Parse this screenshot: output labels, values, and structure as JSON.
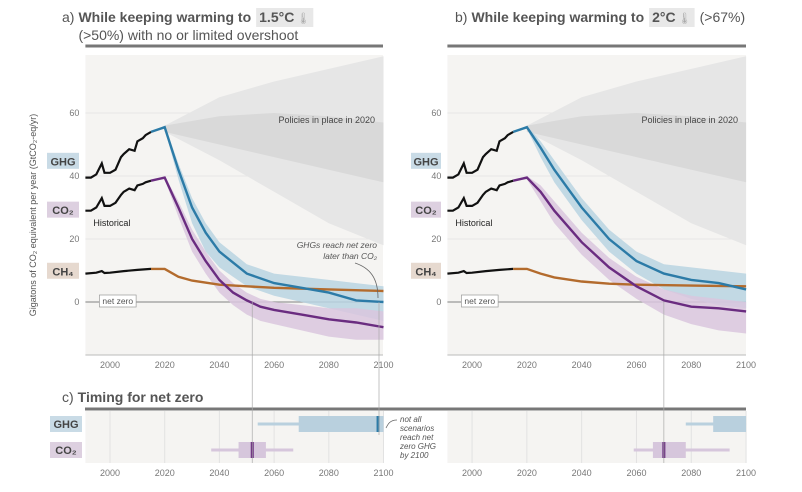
{
  "chart_data": [
    {
      "type": "line",
      "panel": "a",
      "title_prefix": "a)",
      "title": "While keeping warming to",
      "title_highlight": "1.5°C",
      "subtitle": "(>50%) with no or limited overshoot",
      "ylabel": "Gigatons of CO₂ equivalent per year (GtCO₂-eq/yr)",
      "xlim": [
        1991,
        2100
      ],
      "ylim": [
        -17,
        78
      ],
      "xticks": [
        "2000",
        "2020",
        "2040",
        "2060",
        "2080",
        "2100"
      ],
      "yticks": [
        "60",
        "40",
        "20",
        "0"
      ],
      "annotations": {
        "policies": "Policies in place in 2020",
        "historical": "Historical",
        "net_zero": "net zero",
        "note1": "GHGs reach net zero",
        "note2": "later than CO₂"
      },
      "series": [
        {
          "name": "GHG",
          "color": "#2c7ba7",
          "band": "#b9d3e2",
          "x": [
            2015,
            2020,
            2025,
            2030,
            2035,
            2040,
            2050,
            2060,
            2070,
            2080,
            2090,
            2100
          ],
          "y": [
            54,
            55.5,
            42,
            30,
            22,
            16,
            9,
            6,
            4.5,
            3,
            0.5,
            0
          ],
          "lo": [
            54,
            55,
            39,
            25,
            16,
            11,
            5,
            2,
            0,
            -2,
            -4,
            -6
          ],
          "hi": [
            54,
            56,
            44,
            33,
            25,
            19,
            12,
            9,
            8,
            7,
            6,
            5
          ]
        },
        {
          "name": "CO₂",
          "color": "#6a2c80",
          "band": "#d9c6de",
          "x": [
            2015,
            2020,
            2025,
            2030,
            2035,
            2040,
            2045,
            2050,
            2055,
            2060,
            2070,
            2080,
            2090,
            2100
          ],
          "y": [
            38.5,
            39.5,
            30,
            20,
            13,
            7,
            3,
            0.5,
            -1.5,
            -2.5,
            -4,
            -5.5,
            -6.5,
            -8
          ],
          "lo": [
            38.5,
            39,
            27,
            16,
            9,
            3,
            -1,
            -4,
            -6,
            -7,
            -9,
            -11,
            -12,
            -12
          ],
          "hi": [
            38.5,
            40,
            32,
            23,
            16,
            10,
            6,
            3,
            1,
            0,
            -1,
            -2,
            -2,
            -3
          ]
        },
        {
          "name": "CH₄",
          "color": "#b36b2d",
          "x": [
            2015,
            2020,
            2025,
            2030,
            2040,
            2050,
            2060,
            2080,
            2100
          ],
          "y": [
            10.5,
            10.5,
            8,
            6.8,
            5.5,
            5,
            4.5,
            4,
            3.5
          ]
        }
      ],
      "historical": {
        "GHG": {
          "x": [
            1991,
            1993,
            1995,
            1997,
            1998,
            2000,
            2002,
            2004,
            2005,
            2007,
            2009,
            2010,
            2012,
            2013,
            2015
          ],
          "y": [
            39.5,
            39.5,
            40.5,
            44,
            41,
            41,
            42,
            46,
            47,
            48.5,
            48,
            51,
            52,
            53,
            54
          ]
        },
        "CO₂": {
          "x": [
            1991,
            1993,
            1995,
            1997,
            1998,
            2000,
            2002,
            2004,
            2005,
            2007,
            2009,
            2010,
            2012,
            2013,
            2015
          ],
          "y": [
            29,
            29,
            30,
            33,
            30.5,
            30.5,
            31.5,
            34,
            35,
            36,
            35.5,
            37,
            37.5,
            38,
            38.5
          ]
        },
        "CH₄": {
          "x": [
            1991,
            1995,
            1997,
            1998,
            2000,
            2005,
            2010,
            2015
          ],
          "y": [
            9,
            9.3,
            9.8,
            9.2,
            9.3,
            9.8,
            10.2,
            10.5
          ]
        }
      },
      "policies_band": {
        "x": [
          2020,
          2040,
          2060,
          2080,
          2100
        ],
        "outer_lo": [
          54,
          45,
          35,
          25,
          18
        ],
        "outer_hi": [
          56,
          65,
          70,
          74,
          78
        ],
        "inner_lo": [
          54,
          50,
          46,
          42,
          38
        ],
        "inner_hi": [
          56,
          59,
          60,
          59,
          57
        ]
      }
    },
    {
      "type": "line",
      "panel": "b",
      "title_prefix": "b)",
      "title": "While keeping warming to",
      "title_highlight": "2°C",
      "subtitle_inline": "(>67%)",
      "xlim": [
        1991,
        2100
      ],
      "ylim": [
        -17,
        78
      ],
      "xticks": [
        "2000",
        "2020",
        "2040",
        "2060",
        "2080",
        "2100"
      ],
      "yticks": [
        "60",
        "40",
        "20",
        "0"
      ],
      "annotations": {
        "policies": "Policies in place in 2020",
        "historical": "Historical",
        "net_zero": "net zero"
      },
      "series": [
        {
          "name": "GHG",
          "color": "#2c7ba7",
          "band": "#b9d3e2",
          "x": [
            2015,
            2020,
            2025,
            2030,
            2040,
            2050,
            2060,
            2070,
            2080,
            2090,
            2100
          ],
          "y": [
            54,
            55.5,
            49,
            42,
            30,
            20,
            13,
            9,
            7,
            6,
            4
          ],
          "lo": [
            54,
            55,
            46,
            38,
            26,
            16,
            9,
            4,
            1,
            -1,
            -2
          ],
          "hi": [
            54,
            56,
            51,
            45,
            33,
            23,
            16,
            12,
            11,
            10,
            9
          ]
        },
        {
          "name": "CO₂",
          "color": "#6a2c80",
          "band": "#d9c6de",
          "x": [
            2015,
            2020,
            2025,
            2030,
            2040,
            2050,
            2060,
            2070,
            2080,
            2090,
            2100
          ],
          "y": [
            38.5,
            39.5,
            35,
            29,
            19,
            11,
            5,
            0.5,
            -1.5,
            -2,
            -3
          ],
          "lo": [
            38.5,
            39,
            32,
            25,
            15,
            7,
            1,
            -4,
            -7,
            -9,
            -10
          ],
          "hi": [
            38.5,
            40,
            37,
            32,
            22,
            14,
            8,
            4,
            2,
            1,
            0
          ]
        },
        {
          "name": "CH₄",
          "color": "#b36b2d",
          "x": [
            2015,
            2020,
            2025,
            2030,
            2040,
            2050,
            2060,
            2080,
            2100
          ],
          "y": [
            10.5,
            10.5,
            9,
            7.8,
            6.5,
            5.8,
            5.5,
            5.2,
            5
          ]
        }
      ]
    },
    {
      "type": "box",
      "panel": "c",
      "title_prefix": "c)",
      "title": "Timing for net zero",
      "xlim": [
        1991,
        2100
      ],
      "xticks": [
        "2000",
        "2020",
        "2040",
        "2060",
        "2080",
        "2100"
      ],
      "note": [
        "not all",
        "scenarios",
        "reach net",
        "zero GHG",
        "by 2100"
      ],
      "rows": [
        {
          "name": "GHG",
          "color": "#2c7ba7",
          "box_color": "#b9d0de",
          "a": {
            "whisker": [
              2054,
              2100
            ],
            "box": [
              2069,
              2100
            ],
            "median": 2098
          },
          "b": {
            "whisker": [
              2078,
              2100
            ],
            "box": [
              2088,
              2100
            ],
            "median": null
          }
        },
        {
          "name": "CO₂",
          "color": "#6a2c80",
          "box_color": "#d6c6dc",
          "a": {
            "whisker": [
              2037,
              2067
            ],
            "box": [
              2047,
              2057
            ],
            "median": 2052
          },
          "b": {
            "whisker": [
              2059,
              2094
            ],
            "box": [
              2066,
              2078
            ],
            "median": 2070
          }
        }
      ]
    }
  ],
  "labels": {
    "GHG": "GHG",
    "CO2": "CO₂",
    "CH4": "CH₄"
  },
  "colors": {
    "GHG_bg": "#c9dbe6",
    "CO2_bg": "#ddd0e0",
    "CH4_bg": "#e6d9cf",
    "plot_bg": "#f5f4f2"
  }
}
